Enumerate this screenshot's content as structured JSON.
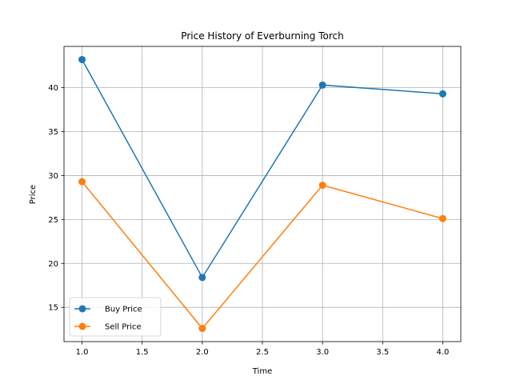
{
  "chart_data": {
    "type": "line",
    "title": "Price History of Everburning Torch",
    "xlabel": "Time",
    "ylabel": "Price",
    "x": [
      1.0,
      2.0,
      3.0,
      4.0
    ],
    "xlim": [
      0.85,
      4.15
    ],
    "ylim": [
      11.1,
      44.7
    ],
    "xticks": [
      "1.0",
      "1.5",
      "2.0",
      "2.5",
      "3.0",
      "3.5",
      "4.0"
    ],
    "yticks": [
      "15",
      "20",
      "25",
      "30",
      "35",
      "40"
    ],
    "grid": true,
    "legend_position": "lower-left",
    "series": [
      {
        "name": "Buy Price",
        "color": "#1f77b4",
        "values": [
          43.2,
          18.4,
          40.3,
          39.3
        ]
      },
      {
        "name": "Sell Price",
        "color": "#ff7f0e",
        "values": [
          29.3,
          12.6,
          28.9,
          25.1
        ]
      }
    ]
  }
}
